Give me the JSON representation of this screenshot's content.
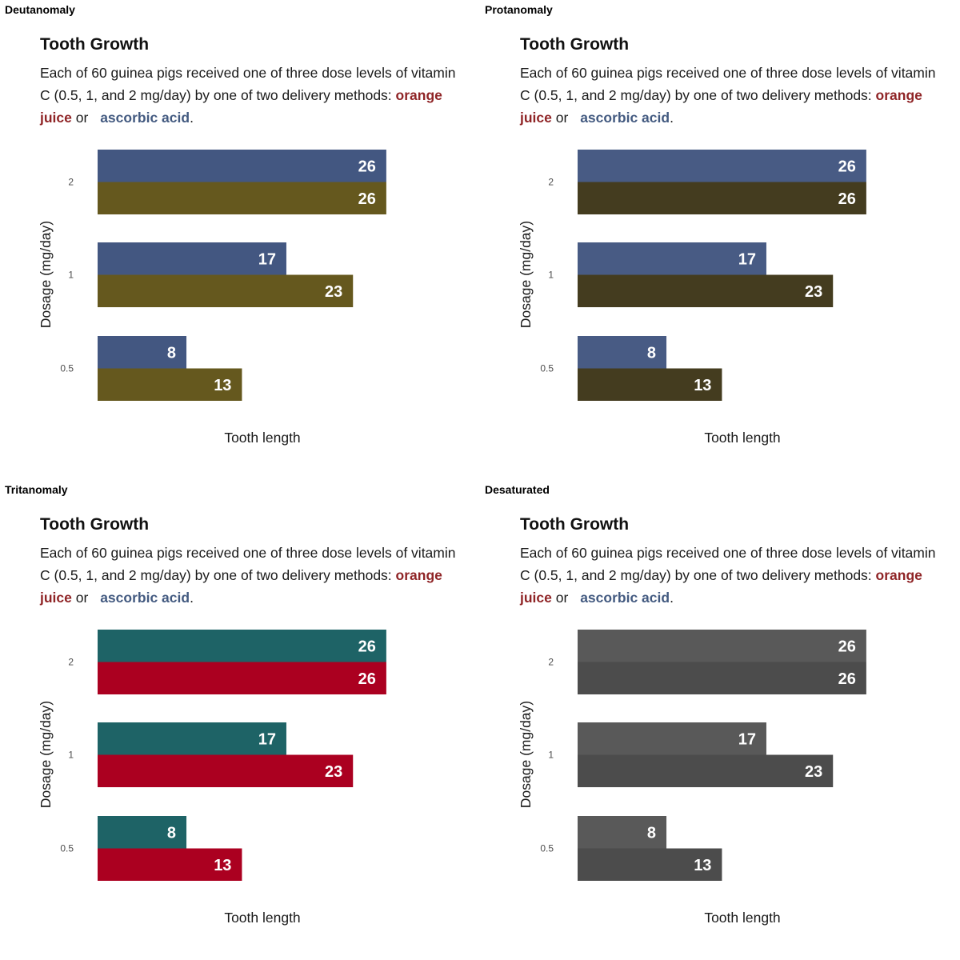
{
  "panels": [
    {
      "label": "Deutanomaly",
      "colors": {
        "ascorbic_acid": "#435781",
        "orange_juice": "#65581e"
      }
    },
    {
      "label": "Protanomaly",
      "colors": {
        "ascorbic_acid": "#485b84",
        "orange_juice": "#443c1f"
      }
    },
    {
      "label": "Tritanomaly",
      "colors": {
        "ascorbic_acid": "#1e6366",
        "orange_juice": "#ab0020"
      }
    },
    {
      "label": "Desaturated",
      "colors": {
        "ascorbic_acid": "#595959",
        "orange_juice": "#4c4c4c"
      }
    }
  ],
  "title": "Tooth Growth",
  "subtitle": {
    "text_before": "Each of 60 guinea pigs received one of three dose levels of vitamin C (0.5, 1, and 2 mg/day) by one of two delivery methods:",
    "orange_juice": "orange juice",
    "connector": "or",
    "ascorbic_acid": "ascorbic acid",
    "text_after": "."
  },
  "highlight_colors": {
    "orange_juice": "#8f2426",
    "ascorbic_acid": "#435a80"
  },
  "chart_data": {
    "type": "bar",
    "orientation": "horizontal",
    "title": "Tooth Growth",
    "xlabel": "Tooth length",
    "ylabel": "Dosage (mg/day)",
    "categories": [
      "2",
      "1",
      "0.5"
    ],
    "series": [
      {
        "name": "ascorbic acid",
        "values": [
          26,
          17,
          8
        ]
      },
      {
        "name": "orange juice",
        "values": [
          26,
          23,
          13
        ]
      }
    ],
    "xlim": [
      0,
      30
    ],
    "grid": false,
    "legend": "none"
  }
}
